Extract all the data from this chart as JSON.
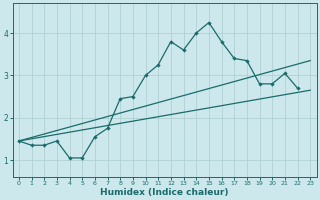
{
  "xlabel": "Humidex (Indice chaleur)",
  "background_color": "#cce8ec",
  "grid_color": "#aacccc",
  "line_color": "#1a6b6b",
  "x": [
    0,
    1,
    2,
    3,
    4,
    5,
    6,
    7,
    8,
    9,
    10,
    11,
    12,
    13,
    14,
    15,
    16,
    17,
    18,
    19,
    20,
    21,
    22,
    23
  ],
  "line1_y": [
    1.45,
    1.35,
    1.35,
    1.45,
    1.05,
    1.05,
    1.55,
    1.75,
    2.45,
    2.5,
    3.0,
    3.25,
    3.8,
    3.6,
    4.0,
    4.25,
    3.8,
    3.4,
    3.35,
    2.8,
    2.8,
    3.05,
    2.7,
    null
  ],
  "trend1_x": [
    0,
    23
  ],
  "trend1_y": [
    1.45,
    3.35
  ],
  "trend2_x": [
    0,
    23
  ],
  "trend2_y": [
    1.45,
    2.65
  ],
  "end_line1_x": [
    0,
    22
  ],
  "end_line1_y": [
    1.45,
    3.05
  ],
  "end_line2_x": [
    0,
    23
  ],
  "end_line2_y": [
    1.45,
    2.65
  ],
  "ylim": [
    0.6,
    4.7
  ],
  "xlim": [
    -0.5,
    23.5
  ],
  "yticks": [
    1,
    2,
    3,
    4
  ],
  "xticks": [
    0,
    1,
    2,
    3,
    4,
    5,
    6,
    7,
    8,
    9,
    10,
    11,
    12,
    13,
    14,
    15,
    16,
    17,
    18,
    19,
    20,
    21,
    22,
    23
  ]
}
